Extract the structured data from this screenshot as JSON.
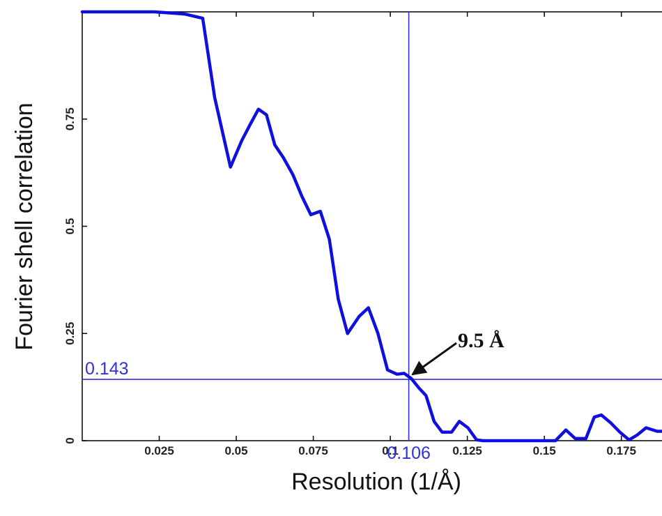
{
  "chart_data": {
    "type": "line",
    "xlabel": "Resolution (1/Å)",
    "ylabel": "Fourier shell correlation",
    "xlim": [
      0.0,
      0.19
    ],
    "ylim": [
      0,
      1
    ],
    "x_ticks": [
      {
        "value": 0.025,
        "label": "0.025"
      },
      {
        "value": 0.05,
        "label": "0.05"
      },
      {
        "value": 0.075,
        "label": "0.075"
      },
      {
        "value": 0.1,
        "label": "0.1"
      },
      {
        "value": 0.125,
        "label": "0.125"
      },
      {
        "value": 0.15,
        "label": "0.15"
      },
      {
        "value": 0.175,
        "label": "0.175"
      }
    ],
    "y_ticks": [
      {
        "value": 0,
        "label": "0"
      },
      {
        "value": 0.25,
        "label": "0.25"
      },
      {
        "value": 0.5,
        "label": "0.5"
      },
      {
        "value": 0.75,
        "label": "0.75"
      }
    ],
    "series": [
      {
        "color": "#1010dd",
        "x": [
          0.0,
          0.0078,
          0.0156,
          0.0234,
          0.0274,
          0.0332,
          0.0391,
          0.043,
          0.0481,
          0.0518,
          0.0547,
          0.0572,
          0.0598,
          0.0625,
          0.0653,
          0.0684,
          0.0713,
          0.0742,
          0.0773,
          0.0802,
          0.0831,
          0.0861,
          0.0899,
          0.0929,
          0.096,
          0.0991,
          0.1022,
          0.1045,
          0.1068,
          0.1094,
          0.1116,
          0.1142,
          0.1168,
          0.1199,
          0.1224,
          0.1252,
          0.128,
          0.1301,
          0.1332,
          0.1388,
          0.1448,
          0.15,
          0.1536,
          0.157,
          0.16,
          0.1635,
          0.1662,
          0.1685,
          0.1715,
          0.1745,
          0.1775,
          0.1801,
          0.183,
          0.1866,
          0.19
        ],
        "values": [
          1.0,
          1.0,
          1.0,
          1.0,
          0.998,
          0.995,
          0.985,
          0.8,
          0.638,
          0.7,
          0.74,
          0.773,
          0.76,
          0.69,
          0.66,
          0.62,
          0.57,
          0.527,
          0.535,
          0.47,
          0.33,
          0.25,
          0.29,
          0.31,
          0.25,
          0.165,
          0.155,
          0.157,
          0.145,
          0.122,
          0.105,
          0.045,
          0.02,
          0.02,
          0.045,
          0.03,
          0.002,
          0.0,
          0.0,
          0.0,
          0.0,
          0.0,
          0.0,
          0.025,
          0.005,
          0.005,
          0.055,
          0.06,
          0.042,
          0.02,
          0.002,
          0.013,
          0.03,
          0.022,
          0.022
        ]
      }
    ],
    "reference_lines": {
      "horizontal": {
        "value": 0.143,
        "label": "0.143"
      },
      "vertical": {
        "value": 0.106,
        "label": "0.106"
      },
      "color": "#3030dd"
    },
    "annotations": [
      {
        "text": "9.5 Å",
        "x": 0.106,
        "y": 0.15
      }
    ],
    "grid": false
  }
}
